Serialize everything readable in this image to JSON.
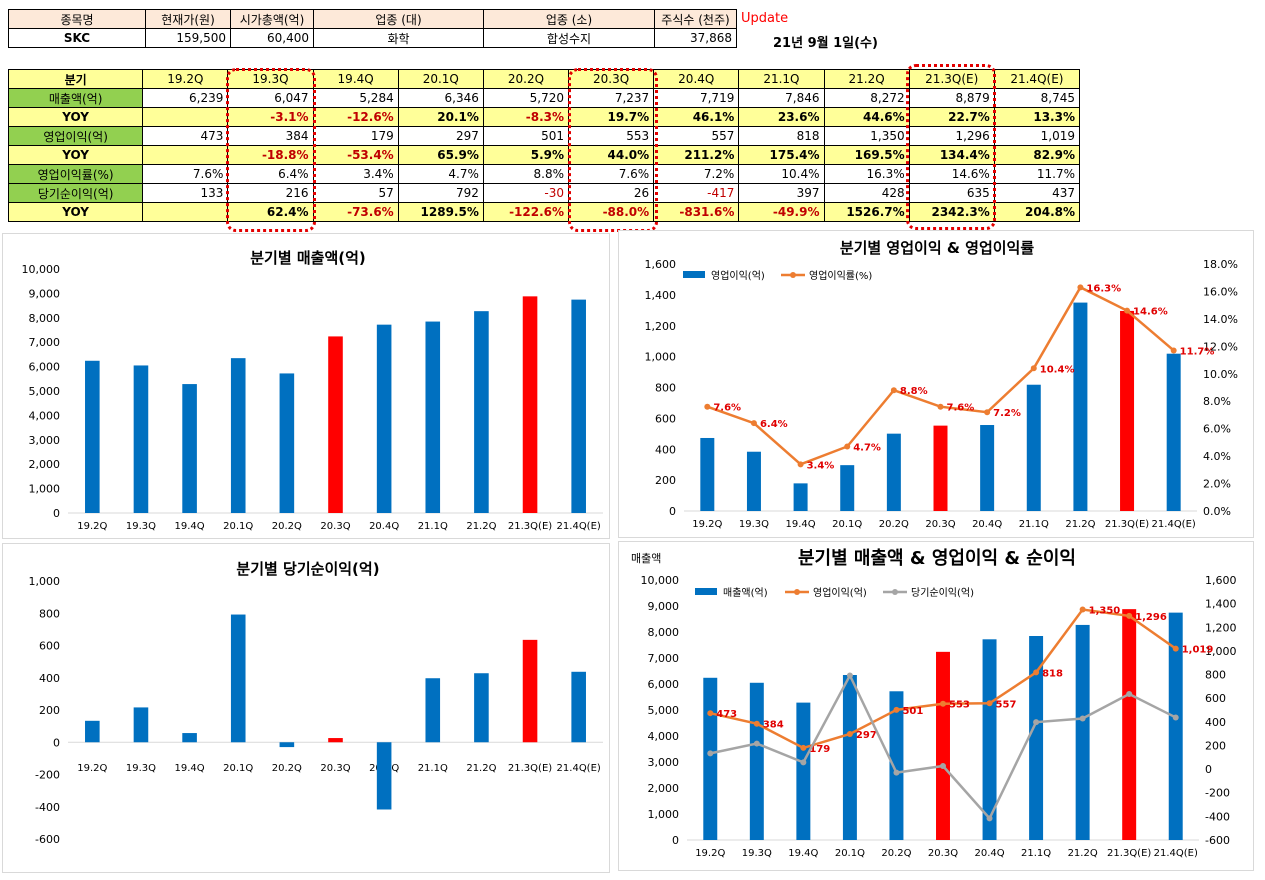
{
  "colors": {
    "blue": "#0070c0",
    "red": "#ff0000",
    "orange": "#ed7d31",
    "gray": "#a5a5a5",
    "green": "#92d050",
    "yellow": "#ffff99",
    "peach": "#fde9d9",
    "neg": "#c00000"
  },
  "info": {
    "headers": [
      "종목명",
      "현재가(원)",
      "시가총액(억)",
      "업종 (대)",
      "업종 (소)",
      "주식수 (천주)"
    ],
    "values": [
      "SKC",
      "159,500",
      "60,400",
      "화학",
      "합성수지",
      "37,868"
    ],
    "update_label": "Update",
    "date": "21년 9월 1일(수)"
  },
  "quarter_table": {
    "header_label": "분기",
    "quarters": [
      "19.2Q",
      "19.3Q",
      "19.4Q",
      "20.1Q",
      "20.2Q",
      "20.3Q",
      "20.4Q",
      "21.1Q",
      "21.2Q",
      "21.3Q(E)",
      "21.4Q(E)"
    ],
    "rows": [
      {
        "label": "매출액(억)",
        "kind": "data",
        "values": [
          "6,239",
          "6,047",
          "5,284",
          "6,346",
          "5,720",
          "7,237",
          "7,719",
          "7,846",
          "8,272",
          "8,879",
          "8,745"
        ]
      },
      {
        "label": "YOY",
        "kind": "yoy",
        "values": [
          "",
          "-3.1%",
          "-12.6%",
          "20.1%",
          "-8.3%",
          "19.7%",
          "46.1%",
          "23.6%",
          "44.6%",
          "22.7%",
          "13.3%"
        ]
      },
      {
        "label": "영업이익(억)",
        "kind": "data",
        "values": [
          "473",
          "384",
          "179",
          "297",
          "501",
          "553",
          "557",
          "818",
          "1,350",
          "1,296",
          "1,019"
        ]
      },
      {
        "label": "YOY",
        "kind": "yoy",
        "values": [
          "",
          "-18.8%",
          "-53.4%",
          "65.9%",
          "5.9%",
          "44.0%",
          "211.2%",
          "175.4%",
          "169.5%",
          "134.4%",
          "82.9%"
        ]
      },
      {
        "label": "영업이익률(%)",
        "kind": "data",
        "values": [
          "7.6%",
          "6.4%",
          "3.4%",
          "4.7%",
          "8.8%",
          "7.6%",
          "7.2%",
          "10.4%",
          "16.3%",
          "14.6%",
          "11.7%"
        ]
      },
      {
        "label": "당기순이익(억)",
        "kind": "data",
        "values": [
          "133",
          "216",
          "57",
          "792",
          "-30",
          "26",
          "-417",
          "397",
          "428",
          "635",
          "437"
        ]
      },
      {
        "label": "YOY",
        "kind": "yoy",
        "values": [
          "",
          "62.4%",
          "-73.6%",
          "1289.5%",
          "-122.6%",
          "-88.0%",
          "-831.6%",
          "-49.9%",
          "1526.7%",
          "2342.3%",
          "204.8%"
        ]
      }
    ]
  },
  "chart_data": [
    {
      "type": "bar",
      "title": "분기별 매출액(억)",
      "categories": [
        "19.2Q",
        "19.3Q",
        "19.4Q",
        "20.1Q",
        "20.2Q",
        "20.3Q",
        "20.4Q",
        "21.1Q",
        "21.2Q",
        "21.3Q(E)",
        "21.4Q(E)"
      ],
      "values": [
        6239,
        6047,
        5284,
        6346,
        5720,
        7237,
        7719,
        7846,
        8272,
        8879,
        8745
      ],
      "highlight": [
        "20.3Q",
        "21.3Q(E)"
      ],
      "ylim": [
        0,
        10000
      ],
      "yticks": [
        "0",
        "1,000",
        "2,000",
        "3,000",
        "4,000",
        "5,000",
        "6,000",
        "7,000",
        "8,000",
        "9,000",
        "10,000"
      ]
    },
    {
      "type": "bar+line",
      "title": "분기별 영업이익 & 영업이익률",
      "categories": [
        "19.2Q",
        "19.3Q",
        "19.4Q",
        "20.1Q",
        "20.2Q",
        "20.3Q",
        "20.4Q",
        "21.1Q",
        "21.2Q",
        "21.3Q(E)",
        "21.4Q(E)"
      ],
      "series": [
        {
          "name": "영업이익(억)",
          "kind": "bar",
          "axis": "left",
          "values": [
            473,
            384,
            179,
            297,
            501,
            553,
            557,
            818,
            1350,
            1296,
            1019
          ]
        },
        {
          "name": "영업이익률(%)",
          "kind": "line",
          "axis": "right",
          "values": [
            7.6,
            6.4,
            3.4,
            4.7,
            8.8,
            7.6,
            7.2,
            10.4,
            16.3,
            14.6,
            11.7
          ],
          "labels": [
            "7.6%",
            "6.4%",
            "3.4%",
            "4.7%",
            "8.8%",
            "7.6%",
            "7.2%",
            "10.4%",
            "16.3%",
            "14.6%",
            "11.7%"
          ]
        }
      ],
      "highlight": [
        "20.3Q",
        "21.3Q(E)"
      ],
      "ylim": [
        0,
        1600
      ],
      "yticks": [
        "0",
        "200",
        "400",
        "600",
        "800",
        "1,000",
        "1,200",
        "1,400",
        "1,600"
      ],
      "y2lim": [
        0,
        18
      ],
      "y2ticks": [
        "0.0%",
        "2.0%",
        "4.0%",
        "6.0%",
        "8.0%",
        "10.0%",
        "12.0%",
        "14.0%",
        "16.0%",
        "18.0%"
      ]
    },
    {
      "type": "bar",
      "title": "분기별 당기순이익(억)",
      "categories": [
        "19.2Q",
        "19.3Q",
        "19.4Q",
        "20.1Q",
        "20.2Q",
        "20.3Q",
        "20.4Q",
        "21.1Q",
        "21.2Q",
        "21.3Q(E)",
        "21.4Q(E)"
      ],
      "values": [
        133,
        216,
        57,
        792,
        -30,
        26,
        -417,
        397,
        428,
        635,
        437
      ],
      "highlight": [
        "20.3Q",
        "21.3Q(E)"
      ],
      "ylim": [
        -600,
        1000
      ],
      "yticks": [
        "-600",
        "-400",
        "-200",
        "0",
        "200",
        "400",
        "600",
        "800",
        "1,000"
      ]
    },
    {
      "type": "bar+line",
      "title": "분기별 매출액 & 영업이익 & 순이익",
      "ylabel": "매출액",
      "categories": [
        "19.2Q",
        "19.3Q",
        "19.4Q",
        "20.1Q",
        "20.2Q",
        "20.3Q",
        "20.4Q",
        "21.1Q",
        "21.2Q",
        "21.3Q(E)",
        "21.4Q(E)"
      ],
      "series": [
        {
          "name": "매출액(억)",
          "kind": "bar",
          "axis": "left",
          "values": [
            6239,
            6047,
            5284,
            6346,
            5720,
            7237,
            7719,
            7846,
            8272,
            8879,
            8745
          ]
        },
        {
          "name": "영업이익(억)",
          "kind": "line",
          "axis": "right",
          "values": [
            473,
            384,
            179,
            297,
            501,
            553,
            557,
            818,
            1350,
            1296,
            1019
          ],
          "labels": [
            "473",
            "384",
            "179",
            "297",
            "501",
            "553",
            "557",
            "818",
            "1,350",
            "1,296",
            "1,019"
          ]
        },
        {
          "name": "당기순이익(억)",
          "kind": "line",
          "axis": "right",
          "values": [
            133,
            216,
            57,
            792,
            -30,
            26,
            -417,
            397,
            428,
            635,
            437
          ]
        }
      ],
      "highlight": [
        "20.3Q",
        "21.3Q(E)"
      ],
      "ylim": [
        0,
        10000
      ],
      "yticks": [
        "0",
        "1,000",
        "2,000",
        "3,000",
        "4,000",
        "5,000",
        "6,000",
        "7,000",
        "8,000",
        "9,000",
        "10,000"
      ],
      "y2lim": [
        -600,
        1600
      ],
      "y2ticks": [
        "-600",
        "-400",
        "-200",
        "0",
        "200",
        "400",
        "600",
        "800",
        "1,000",
        "1,200",
        "1,400",
        "1,600"
      ]
    }
  ]
}
